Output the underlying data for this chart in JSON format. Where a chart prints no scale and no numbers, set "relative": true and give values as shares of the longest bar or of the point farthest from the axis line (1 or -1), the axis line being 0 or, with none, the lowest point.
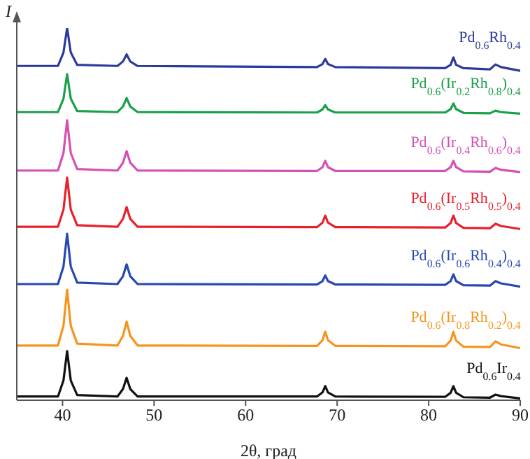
{
  "chart_data": {
    "type": "line",
    "relative": true,
    "xlabel": "2θ, град",
    "ylabel": "I",
    "xlim": [
      35,
      90
    ],
    "xticks": [
      40,
      50,
      60,
      70,
      80,
      90
    ],
    "grid": false,
    "legend": false,
    "marker": "none",
    "line_style": "solid",
    "x": [
      35,
      39.5,
      40.1,
      40.5,
      40.9,
      41.6,
      46.0,
      46.6,
      47.0,
      47.4,
      48.2,
      67.8,
      68.4,
      68.7,
      69.0,
      69.8,
      81.8,
      82.4,
      82.7,
      83.0,
      83.8,
      86.7,
      87.3,
      87.9,
      90
    ],
    "series": [
      {
        "name": "Pd$_{0.6}$Rh$_{0.4}$",
        "color": "#2b3a9a",
        "values": [
          0.898,
          0.898,
          0.934,
          1.0,
          0.934,
          0.901,
          0.898,
          0.91,
          0.929,
          0.91,
          0.898,
          0.895,
          0.903,
          0.917,
          0.903,
          0.895,
          0.892,
          0.901,
          0.921,
          0.901,
          0.892,
          0.889,
          0.902,
          0.895,
          0.885
        ]
      },
      {
        "name": "Pd$_{0.6}$(Ir$_{0.2}$Rh$_{0.8}$)$_{0.4}$",
        "color": "#1aa04a",
        "values": [
          0.774,
          0.774,
          0.81,
          0.876,
          0.81,
          0.777,
          0.774,
          0.789,
          0.812,
          0.789,
          0.774,
          0.773,
          0.781,
          0.793,
          0.781,
          0.773,
          0.773,
          0.782,
          0.797,
          0.782,
          0.772,
          0.771,
          0.778,
          0.774,
          0.77
        ]
      },
      {
        "name": "Pd$_{0.6}$(Ir$_{0.4}$Rh$_{0.6}$)$_{0.4}$",
        "color": "#d64fb4",
        "values": [
          0.617,
          0.617,
          0.664,
          0.752,
          0.664,
          0.621,
          0.617,
          0.638,
          0.669,
          0.638,
          0.617,
          0.616,
          0.626,
          0.643,
          0.626,
          0.616,
          0.616,
          0.626,
          0.643,
          0.626,
          0.615,
          0.614,
          0.624,
          0.619,
          0.613
        ]
      },
      {
        "name": "Pd$_{0.6}$(Ir$_{0.5}$Rh$_{0.5}$)$_{0.4}$",
        "color": "#e8202a",
        "values": [
          0.466,
          0.466,
          0.512,
          0.598,
          0.512,
          0.47,
          0.466,
          0.487,
          0.519,
          0.487,
          0.466,
          0.465,
          0.477,
          0.496,
          0.477,
          0.465,
          0.464,
          0.476,
          0.496,
          0.476,
          0.463,
          0.462,
          0.474,
          0.468,
          0.46
        ]
      },
      {
        "name": "Pd$_{0.6}$(Ir$_{0.6}$Rh$_{0.4}$)$_{0.4}$",
        "color": "#2848b0",
        "values": [
          0.312,
          0.312,
          0.359,
          0.447,
          0.359,
          0.316,
          0.312,
          0.333,
          0.365,
          0.333,
          0.312,
          0.311,
          0.32,
          0.335,
          0.32,
          0.311,
          0.31,
          0.32,
          0.338,
          0.32,
          0.309,
          0.308,
          0.32,
          0.314,
          0.305
        ]
      },
      {
        "name": "Pd$_{0.6}$(Ir$_{0.8}$Rh$_{0.2}$)$_{0.4}$",
        "color": "#f7941d",
        "values": [
          0.147,
          0.147,
          0.2,
          0.297,
          0.2,
          0.152,
          0.147,
          0.173,
          0.211,
          0.173,
          0.147,
          0.146,
          0.161,
          0.184,
          0.161,
          0.146,
          0.145,
          0.16,
          0.184,
          0.16,
          0.144,
          0.143,
          0.158,
          0.15,
          0.14
        ]
      },
      {
        "name": "Pd$_{0.6}$Ir$_{0.4}$",
        "color": "#111111",
        "values": [
          0.01,
          0.01,
          0.053,
          0.132,
          0.053,
          0.014,
          0.01,
          0.03,
          0.06,
          0.03,
          0.01,
          0.01,
          0.021,
          0.038,
          0.021,
          0.01,
          0.009,
          0.02,
          0.038,
          0.02,
          0.008,
          0.007,
          0.015,
          0.011,
          0.005
        ]
      }
    ]
  }
}
